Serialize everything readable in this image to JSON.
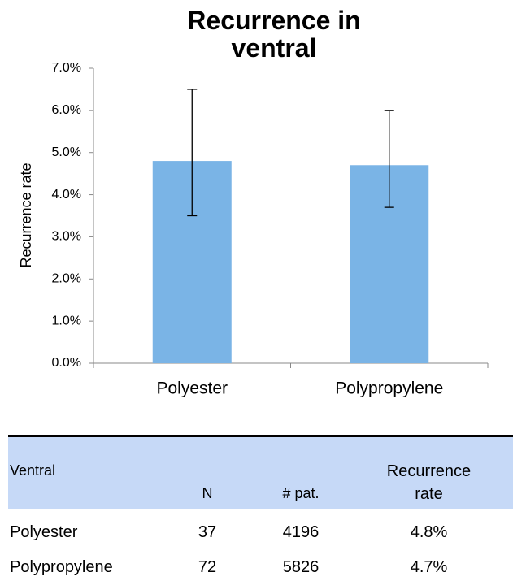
{
  "chart_data": {
    "type": "bar",
    "title": "Recurrence in ventral",
    "y_label": "Recurrence rate",
    "categories": [
      "Polyester",
      "Polypropylene"
    ],
    "values": [
      4.8,
      4.7
    ],
    "ci_low": [
      3.5,
      3.7
    ],
    "ci_high": [
      6.5,
      6.0
    ],
    "color": "#7ab4e6",
    "ylim": [
      0,
      7
    ],
    "yticks": [
      {
        "value": 0,
        "label": "0.0%"
      },
      {
        "value": 1,
        "label": "1.0%"
      },
      {
        "value": 2,
        "label": "2.0%"
      },
      {
        "value": 3,
        "label": "3.0%"
      },
      {
        "value": 4,
        "label": "4.0%"
      },
      {
        "value": 5,
        "label": "5.0%"
      },
      {
        "value": 6,
        "label": "6.0%"
      },
      {
        "value": 7,
        "label": "7.0%"
      }
    ],
    "grid": false
  },
  "table": {
    "header": [
      "Ventral",
      "N",
      "# pat.",
      "Recurrence rate"
    ],
    "rows": [
      [
        "Polyester",
        "37",
        "4196",
        "4.8%"
      ],
      [
        "Polypropylene",
        "72",
        "5826",
        "4.7%"
      ]
    ]
  }
}
